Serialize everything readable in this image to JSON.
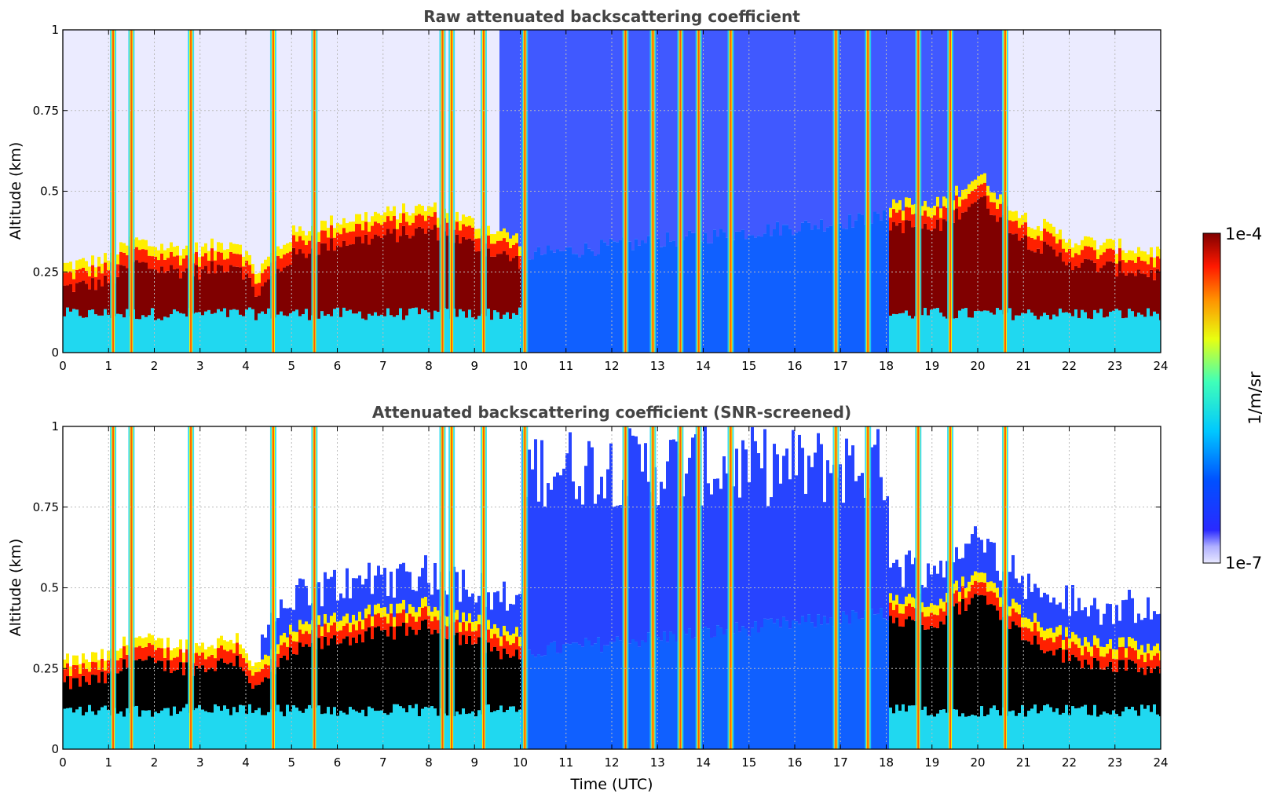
{
  "chart_data": [
    {
      "type": "heatmap",
      "id": "raw",
      "title": "Raw attenuated backscattering coefficient",
      "xlabel": "",
      "ylabel": "Altitude (km)",
      "xlim": [
        0,
        24
      ],
      "ylim": [
        0,
        1
      ],
      "xticks": [
        "0",
        "1",
        "2",
        "3",
        "4",
        "5",
        "6",
        "7",
        "8",
        "9",
        "10",
        "11",
        "12",
        "13",
        "14",
        "15",
        "16",
        "17",
        "18",
        "19",
        "20",
        "21",
        "22",
        "23",
        "24"
      ],
      "yticks": [
        "0",
        "0.25",
        "0.5",
        "0.75",
        "1"
      ],
      "grid": true,
      "screened": false,
      "boundary_layer_top_km": [
        [
          0,
          0.22
        ],
        [
          1,
          0.24
        ],
        [
          1.5,
          0.3
        ],
        [
          2,
          0.28
        ],
        [
          3,
          0.27
        ],
        [
          3.8,
          0.3
        ],
        [
          4.2,
          0.2
        ],
        [
          5,
          0.32
        ],
        [
          6,
          0.36
        ],
        [
          7,
          0.38
        ],
        [
          8,
          0.4
        ],
        [
          9,
          0.35
        ],
        [
          10,
          0.3
        ],
        [
          18,
          0.42
        ],
        [
          19,
          0.4
        ],
        [
          20,
          0.5
        ],
        [
          21,
          0.37
        ],
        [
          22,
          0.3
        ],
        [
          23,
          0.28
        ],
        [
          24,
          0.26
        ]
      ],
      "cloud_columns_utc": [
        1.1,
        1.5,
        2.8,
        4.6,
        5.5,
        8.3,
        8.5,
        9.2,
        10.1,
        12.3,
        12.9,
        13.5,
        13.9,
        14.6,
        16.9,
        17.6,
        18.7,
        19.4,
        20.6
      ]
    },
    {
      "type": "heatmap",
      "id": "screened",
      "title": "Attenuated backscattering coefficient (SNR-screened)",
      "xlabel": "Time (UTC)",
      "ylabel": "Altitude (km)",
      "xlim": [
        0,
        24
      ],
      "ylim": [
        0,
        1
      ],
      "xticks": [
        "0",
        "1",
        "2",
        "3",
        "4",
        "5",
        "6",
        "7",
        "8",
        "9",
        "10",
        "11",
        "12",
        "13",
        "14",
        "15",
        "16",
        "17",
        "18",
        "19",
        "20",
        "21",
        "22",
        "23",
        "24"
      ],
      "yticks": [
        "0",
        "0.25",
        "0.5",
        "0.75",
        "1"
      ],
      "grid": true,
      "screened": true,
      "boundary_layer_top_km": [
        [
          0,
          0.22
        ],
        [
          1,
          0.24
        ],
        [
          1.5,
          0.3
        ],
        [
          2,
          0.28
        ],
        [
          3,
          0.27
        ],
        [
          3.8,
          0.3
        ],
        [
          4.2,
          0.2
        ],
        [
          5,
          0.32
        ],
        [
          6,
          0.36
        ],
        [
          7,
          0.38
        ],
        [
          8,
          0.4
        ],
        [
          9,
          0.35
        ],
        [
          10,
          0.3
        ],
        [
          18,
          0.42
        ],
        [
          19,
          0.4
        ],
        [
          20,
          0.5
        ],
        [
          21,
          0.37
        ],
        [
          22,
          0.3
        ],
        [
          23,
          0.28
        ],
        [
          24,
          0.26
        ]
      ],
      "cloud_columns_utc": [
        1.1,
        1.5,
        2.8,
        4.6,
        5.5,
        8.3,
        8.5,
        9.2,
        10.1,
        12.3,
        12.9,
        13.5,
        13.9,
        14.6,
        16.9,
        17.6,
        18.7,
        19.4,
        20.6
      ]
    }
  ],
  "colorbar": {
    "label": "1/m/sr",
    "max_label": "1e-4",
    "min_label": "1e-7",
    "scale": "log",
    "range": [
      1e-07,
      0.0001
    ],
    "colormap": "jet"
  },
  "colors": {
    "dark_red": "#800000",
    "red": "#ff2000",
    "yellow": "#ffee00",
    "cyan": "#20d8f0",
    "blue": "#1030ff",
    "pale": "#e6e6ff",
    "black": "#000000"
  }
}
